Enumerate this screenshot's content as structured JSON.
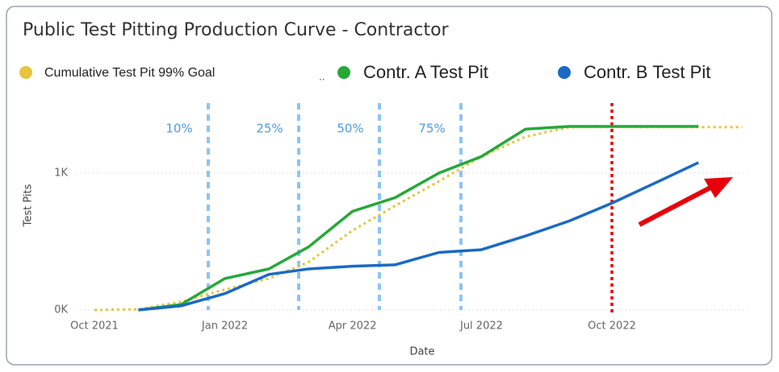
{
  "chart_data": {
    "type": "line",
    "title": "Public Test Pitting Production Curve - Contractor",
    "x_label": "Date",
    "y_label": "Test Pits",
    "x": [
      "2021-10",
      "2021-11",
      "2021-12",
      "2022-01",
      "2022-02",
      "2022-03",
      "2022-04",
      "2022-05",
      "2022-06",
      "2022-07",
      "2022-08",
      "2022-09",
      "2022-10",
      "2022-11",
      "2022-12",
      "2023-01"
    ],
    "series": [
      {
        "name": "Cumulative Test Pit 99% Goal",
        "color": "#e6c43c",
        "style": "dotted",
        "values": [
          0,
          5,
          60,
          150,
          230,
          350,
          580,
          760,
          940,
          1120,
          1265,
          1335,
          1335,
          1335,
          1335,
          1335
        ]
      },
      {
        "name": "Contr. A Test Pit",
        "color": "#25a939",
        "style": "solid",
        "values": [
          null,
          0,
          40,
          230,
          300,
          460,
          720,
          820,
          1000,
          1120,
          1320,
          1340,
          1340,
          1340,
          1340,
          null
        ]
      },
      {
        "name": "Contr. B Test Pit",
        "color": "#1a6ac4",
        "style": "solid",
        "values": [
          null,
          0,
          30,
          120,
          260,
          300,
          320,
          330,
          420,
          440,
          540,
          650,
          780,
          930,
          1076,
          null
        ]
      }
    ],
    "xlim": [
      "2021-09",
      "2023-01"
    ],
    "ylim": [
      0,
      1440
    ],
    "xticks": [
      {
        "value": "2021-10",
        "label": "Oct 2021"
      },
      {
        "value": "2022-01",
        "label": "Jan 2022"
      },
      {
        "value": "2022-04",
        "label": "Apr 2022"
      },
      {
        "value": "2022-07",
        "label": "Jul 2022"
      },
      {
        "value": "2022-10",
        "label": "Oct 2022"
      }
    ],
    "yticks": [
      {
        "value": 0,
        "label": "0K"
      },
      {
        "value": 1000,
        "label": "1K"
      }
    ],
    "grid": true,
    "legend": "top",
    "annotations": [
      "10%",
      "25%",
      "50%",
      "75%"
    ],
    "reference_line": {
      "x": "2022-10",
      "color": "#e8000b"
    }
  }
}
